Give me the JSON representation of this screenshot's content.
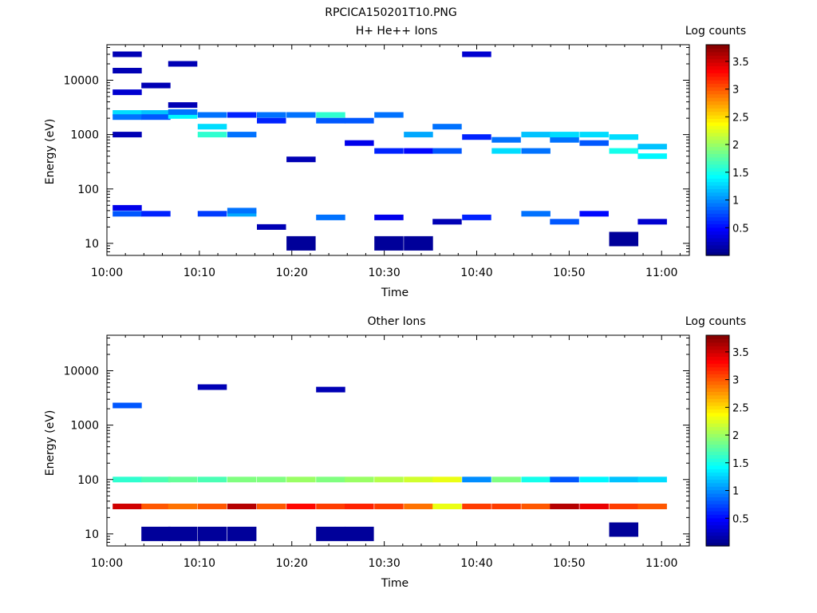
{
  "figure_title": "RPCICA150201T10.PNG",
  "panels": [
    {
      "key": "hplus",
      "title": "H+ He++ Ions",
      "xlabel": "Time",
      "ylabel": "Energy (eV)",
      "colorbar_label": "Log counts",
      "x_ticks": [
        "10:00",
        "10:10",
        "10:20",
        "10:30",
        "10:40",
        "10:50",
        "11:00"
      ],
      "y_ticks": [
        "10",
        "100",
        "1000",
        "10000"
      ],
      "cb_ticks": [
        "0.5",
        "1",
        "1.5",
        "2",
        "2.5",
        "3",
        "3.5"
      ]
    },
    {
      "key": "other",
      "title": "Other Ions",
      "xlabel": "Time",
      "ylabel": "Energy (eV)",
      "colorbar_label": "Log counts",
      "x_ticks": [
        "10:00",
        "10:10",
        "10:20",
        "10:30",
        "10:40",
        "10:50",
        "11:00"
      ],
      "y_ticks": [
        "10",
        "100",
        "1000",
        "10000"
      ],
      "cb_ticks": [
        "0.5",
        "1",
        "1.5",
        "2",
        "2.5",
        "3",
        "3.5"
      ]
    }
  ],
  "chart_data": [
    {
      "type": "heatmap",
      "title": "H+ He++ Ions",
      "xlabel": "Time",
      "ylabel": "Energy (eV)",
      "x_range": [
        "10:00",
        "11:03"
      ],
      "y_range_eV": [
        6,
        45000
      ],
      "y_scale": "log",
      "colorbar": {
        "label": "Log counts",
        "range": [
          0,
          3.8
        ],
        "colormap": "jet"
      },
      "time_bins_min": [
        2.2,
        5.3,
        8.2,
        11.4,
        14.6,
        17.8,
        21.0,
        24.2,
        27.3,
        30.5,
        33.7,
        36.8,
        40.0,
        43.2,
        46.4,
        49.5,
        52.7,
        55.9,
        59.0
      ],
      "cells": [
        {
          "t": 2.2,
          "e": 35,
          "v": 0.8
        },
        {
          "t": 2.2,
          "e": 45,
          "v": 0.4
        },
        {
          "t": 2.2,
          "e": 2500,
          "v": 1.3
        },
        {
          "t": 2.2,
          "e": 2100,
          "v": 0.9
        },
        {
          "t": 2.2,
          "e": 30000,
          "v": 0.2
        },
        {
          "t": 2.2,
          "e": 15000,
          "v": 0.2
        },
        {
          "t": 2.2,
          "e": 6000,
          "v": 0.3
        },
        {
          "t": 2.2,
          "e": 1000,
          "v": 0.2
        },
        {
          "t": 5.3,
          "e": 35,
          "v": 0.6
        },
        {
          "t": 5.3,
          "e": 2500,
          "v": 1.2
        },
        {
          "t": 5.3,
          "e": 2100,
          "v": 0.8
        },
        {
          "t": 5.3,
          "e": 8000,
          "v": 0.2
        },
        {
          "t": 8.2,
          "e": 2200,
          "v": 1.4
        },
        {
          "t": 8.2,
          "e": 2600,
          "v": 0.9
        },
        {
          "t": 8.2,
          "e": 20000,
          "v": 0.2
        },
        {
          "t": 8.2,
          "e": 3500,
          "v": 0.2
        },
        {
          "t": 11.4,
          "e": 1400,
          "v": 1.3
        },
        {
          "t": 11.4,
          "e": 1000,
          "v": 1.6
        },
        {
          "t": 11.4,
          "e": 35,
          "v": 0.7
        },
        {
          "t": 11.4,
          "e": 2300,
          "v": 0.9
        },
        {
          "t": 14.6,
          "e": 1000,
          "v": 0.9
        },
        {
          "t": 14.6,
          "e": 35,
          "v": 1.1
        },
        {
          "t": 14.6,
          "e": 40,
          "v": 0.9
        },
        {
          "t": 14.6,
          "e": 2300,
          "v": 0.6
        },
        {
          "t": 17.8,
          "e": 2300,
          "v": 0.9
        },
        {
          "t": 17.8,
          "e": 1800,
          "v": 0.6
        },
        {
          "t": 17.8,
          "e": 20,
          "v": 0.2
        },
        {
          "t": 21.0,
          "e": 2300,
          "v": 0.9
        },
        {
          "t": 21.0,
          "e": 10,
          "v": 0.1
        },
        {
          "t": 21.0,
          "e": 350,
          "v": 0.2
        },
        {
          "t": 24.2,
          "e": 2300,
          "v": 1.6
        },
        {
          "t": 24.2,
          "e": 1800,
          "v": 0.8
        },
        {
          "t": 24.2,
          "e": 30,
          "v": 0.9
        },
        {
          "t": 27.3,
          "e": 1800,
          "v": 0.8
        },
        {
          "t": 27.3,
          "e": 700,
          "v": 0.4
        },
        {
          "t": 30.5,
          "e": 10,
          "v": 0.1
        },
        {
          "t": 30.5,
          "e": 500,
          "v": 0.6
        },
        {
          "t": 30.5,
          "e": 30,
          "v": 0.4
        },
        {
          "t": 30.5,
          "e": 2300,
          "v": 0.9
        },
        {
          "t": 33.7,
          "e": 10,
          "v": 0.1
        },
        {
          "t": 33.7,
          "e": 1000,
          "v": 1.1
        },
        {
          "t": 33.7,
          "e": 500,
          "v": 0.5
        },
        {
          "t": 36.8,
          "e": 500,
          "v": 0.8
        },
        {
          "t": 36.8,
          "e": 1400,
          "v": 0.9
        },
        {
          "t": 36.8,
          "e": 25,
          "v": 0.2
        },
        {
          "t": 40.0,
          "e": 30,
          "v": 0.6
        },
        {
          "t": 40.0,
          "e": 900,
          "v": 0.6
        },
        {
          "t": 40.0,
          "e": 30000,
          "v": 0.3
        },
        {
          "t": 43.2,
          "e": 500,
          "v": 1.3
        },
        {
          "t": 43.2,
          "e": 800,
          "v": 0.9
        },
        {
          "t": 46.4,
          "e": 35,
          "v": 0.9
        },
        {
          "t": 46.4,
          "e": 1000,
          "v": 1.2
        },
        {
          "t": 46.4,
          "e": 500,
          "v": 0.9
        },
        {
          "t": 49.5,
          "e": 25,
          "v": 0.8
        },
        {
          "t": 49.5,
          "e": 800,
          "v": 0.9
        },
        {
          "t": 49.5,
          "e": 1000,
          "v": 1.3
        },
        {
          "t": 52.7,
          "e": 1000,
          "v": 1.3
        },
        {
          "t": 52.7,
          "e": 700,
          "v": 0.8
        },
        {
          "t": 52.7,
          "e": 35,
          "v": 0.5
        },
        {
          "t": 55.9,
          "e": 500,
          "v": 1.5
        },
        {
          "t": 55.9,
          "e": 900,
          "v": 1.3
        },
        {
          "t": 55.9,
          "e": 12,
          "v": 0.1
        },
        {
          "t": 59.0,
          "e": 400,
          "v": 1.4
        },
        {
          "t": 59.0,
          "e": 600,
          "v": 1.2
        },
        {
          "t": 59.0,
          "e": 25,
          "v": 0.3
        }
      ]
    },
    {
      "type": "heatmap",
      "title": "Other Ions",
      "xlabel": "Time",
      "ylabel": "Energy (eV)",
      "x_range": [
        "10:00",
        "11:03"
      ],
      "y_range_eV": [
        6,
        45000
      ],
      "y_scale": "log",
      "colorbar": {
        "label": "Log counts",
        "range": [
          0,
          3.8
        ],
        "colormap": "jet"
      },
      "time_bins_min": [
        2.2,
        5.3,
        8.2,
        11.4,
        14.6,
        17.8,
        21.0,
        24.2,
        27.3,
        30.5,
        33.7,
        36.8,
        40.0,
        43.2,
        46.4,
        49.5,
        52.7,
        55.9,
        59.0
      ],
      "profile_low_energy_peak": {
        "energy_eV": 32,
        "max_log_counts": 3.6
      },
      "cells": [
        {
          "t": 2.2,
          "e": 32,
          "v": 3.5
        },
        {
          "t": 5.3,
          "e": 32,
          "v": 3.0
        },
        {
          "t": 8.2,
          "e": 32,
          "v": 2.9
        },
        {
          "t": 11.4,
          "e": 32,
          "v": 3.0
        },
        {
          "t": 14.6,
          "e": 32,
          "v": 3.6
        },
        {
          "t": 17.8,
          "e": 32,
          "v": 3.0
        },
        {
          "t": 21.0,
          "e": 32,
          "v": 3.3
        },
        {
          "t": 24.2,
          "e": 32,
          "v": 3.1
        },
        {
          "t": 27.3,
          "e": 32,
          "v": 3.2
        },
        {
          "t": 30.5,
          "e": 32,
          "v": 3.1
        },
        {
          "t": 33.7,
          "e": 32,
          "v": 2.9
        },
        {
          "t": 36.8,
          "e": 32,
          "v": 2.3
        },
        {
          "t": 40.0,
          "e": 32,
          "v": 3.1
        },
        {
          "t": 43.2,
          "e": 32,
          "v": 3.1
        },
        {
          "t": 46.4,
          "e": 32,
          "v": 3.0
        },
        {
          "t": 49.5,
          "e": 32,
          "v": 3.6
        },
        {
          "t": 52.7,
          "e": 32,
          "v": 3.4
        },
        {
          "t": 55.9,
          "e": 32,
          "v": 3.1
        },
        {
          "t": 59.0,
          "e": 32,
          "v": 3.0
        },
        {
          "t": 2.2,
          "e": 100,
          "v": 1.6
        },
        {
          "t": 5.3,
          "e": 100,
          "v": 1.7
        },
        {
          "t": 8.2,
          "e": 100,
          "v": 1.8
        },
        {
          "t": 11.4,
          "e": 100,
          "v": 1.7
        },
        {
          "t": 14.6,
          "e": 100,
          "v": 1.9
        },
        {
          "t": 17.8,
          "e": 100,
          "v": 1.9
        },
        {
          "t": 21.0,
          "e": 100,
          "v": 2.0
        },
        {
          "t": 24.2,
          "e": 100,
          "v": 1.9
        },
        {
          "t": 27.3,
          "e": 100,
          "v": 2.0
        },
        {
          "t": 30.5,
          "e": 100,
          "v": 2.1
        },
        {
          "t": 33.7,
          "e": 100,
          "v": 2.2
        },
        {
          "t": 36.8,
          "e": 100,
          "v": 2.3
        },
        {
          "t": 40.0,
          "e": 100,
          "v": 1.0
        },
        {
          "t": 43.2,
          "e": 100,
          "v": 1.9
        },
        {
          "t": 46.4,
          "e": 100,
          "v": 1.5
        },
        {
          "t": 49.5,
          "e": 100,
          "v": 0.8
        },
        {
          "t": 52.7,
          "e": 100,
          "v": 1.4
        },
        {
          "t": 55.9,
          "e": 100,
          "v": 1.2
        },
        {
          "t": 59.0,
          "e": 100,
          "v": 1.3
        },
        {
          "t": 2.2,
          "e": 2300,
          "v": 0.8
        },
        {
          "t": 11.4,
          "e": 5000,
          "v": 0.2
        },
        {
          "t": 24.2,
          "e": 4500,
          "v": 0.2
        },
        {
          "t": 5.3,
          "e": 10,
          "v": 0.1
        },
        {
          "t": 8.2,
          "e": 10,
          "v": 0.1
        },
        {
          "t": 11.4,
          "e": 10,
          "v": 0.1
        },
        {
          "t": 14.6,
          "e": 10,
          "v": 0.1
        },
        {
          "t": 24.2,
          "e": 10,
          "v": 0.1
        },
        {
          "t": 27.3,
          "e": 10,
          "v": 0.1
        },
        {
          "t": 55.9,
          "e": 12,
          "v": 0.1
        }
      ]
    }
  ]
}
